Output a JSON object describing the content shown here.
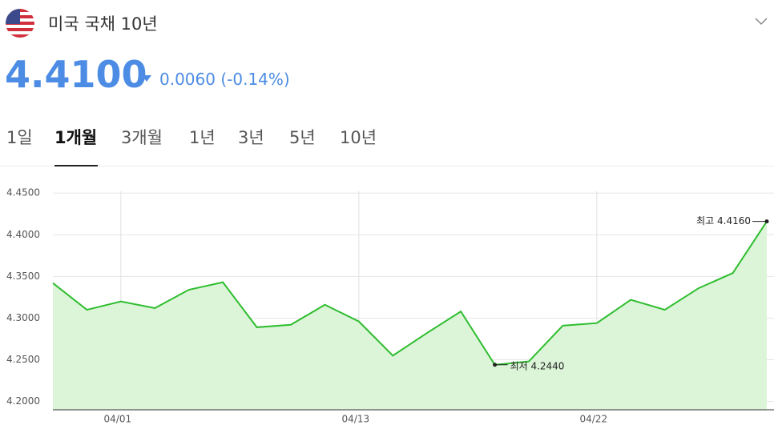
{
  "header": {
    "title": "미국 국채 10년",
    "price": "4.4100",
    "change": "0.0060 (-0.14%)"
  },
  "tabs": [
    "1일",
    "1개월",
    "3개월",
    "1년",
    "3년",
    "5년",
    "10년"
  ],
  "chart_data": {
    "type": "line",
    "categories": [
      null,
      null,
      "04/01",
      null,
      null,
      null,
      null,
      null,
      null,
      "04/13",
      null,
      null,
      null,
      null,
      null,
      null,
      "04/22",
      null,
      null,
      null,
      null,
      null
    ],
    "values": [
      4.342,
      4.31,
      4.32,
      4.312,
      4.334,
      4.343,
      4.289,
      4.292,
      4.316,
      4.296,
      4.255,
      4.282,
      4.308,
      4.244,
      4.248,
      4.291,
      4.294,
      4.322,
      4.31,
      4.336,
      4.354,
      4.416
    ],
    "color": "#2ebd2e",
    "fill": "#dcf5d8",
    "ylim": [
      4.19,
      4.48
    ],
    "yticks": [
      {
        "value": 4.2,
        "label": "4.2000"
      },
      {
        "value": 4.25,
        "label": "4.2500"
      },
      {
        "value": 4.3,
        "label": "4.3000"
      },
      {
        "value": 4.35,
        "label": "4.3500"
      },
      {
        "value": 4.4,
        "label": "4.4000"
      },
      {
        "value": 4.45,
        "label": "4.4500"
      }
    ],
    "grid": true,
    "annotations": [
      {
        "text": "최고 4.4160"
      },
      {
        "text": "최저 4.2440"
      }
    ]
  }
}
